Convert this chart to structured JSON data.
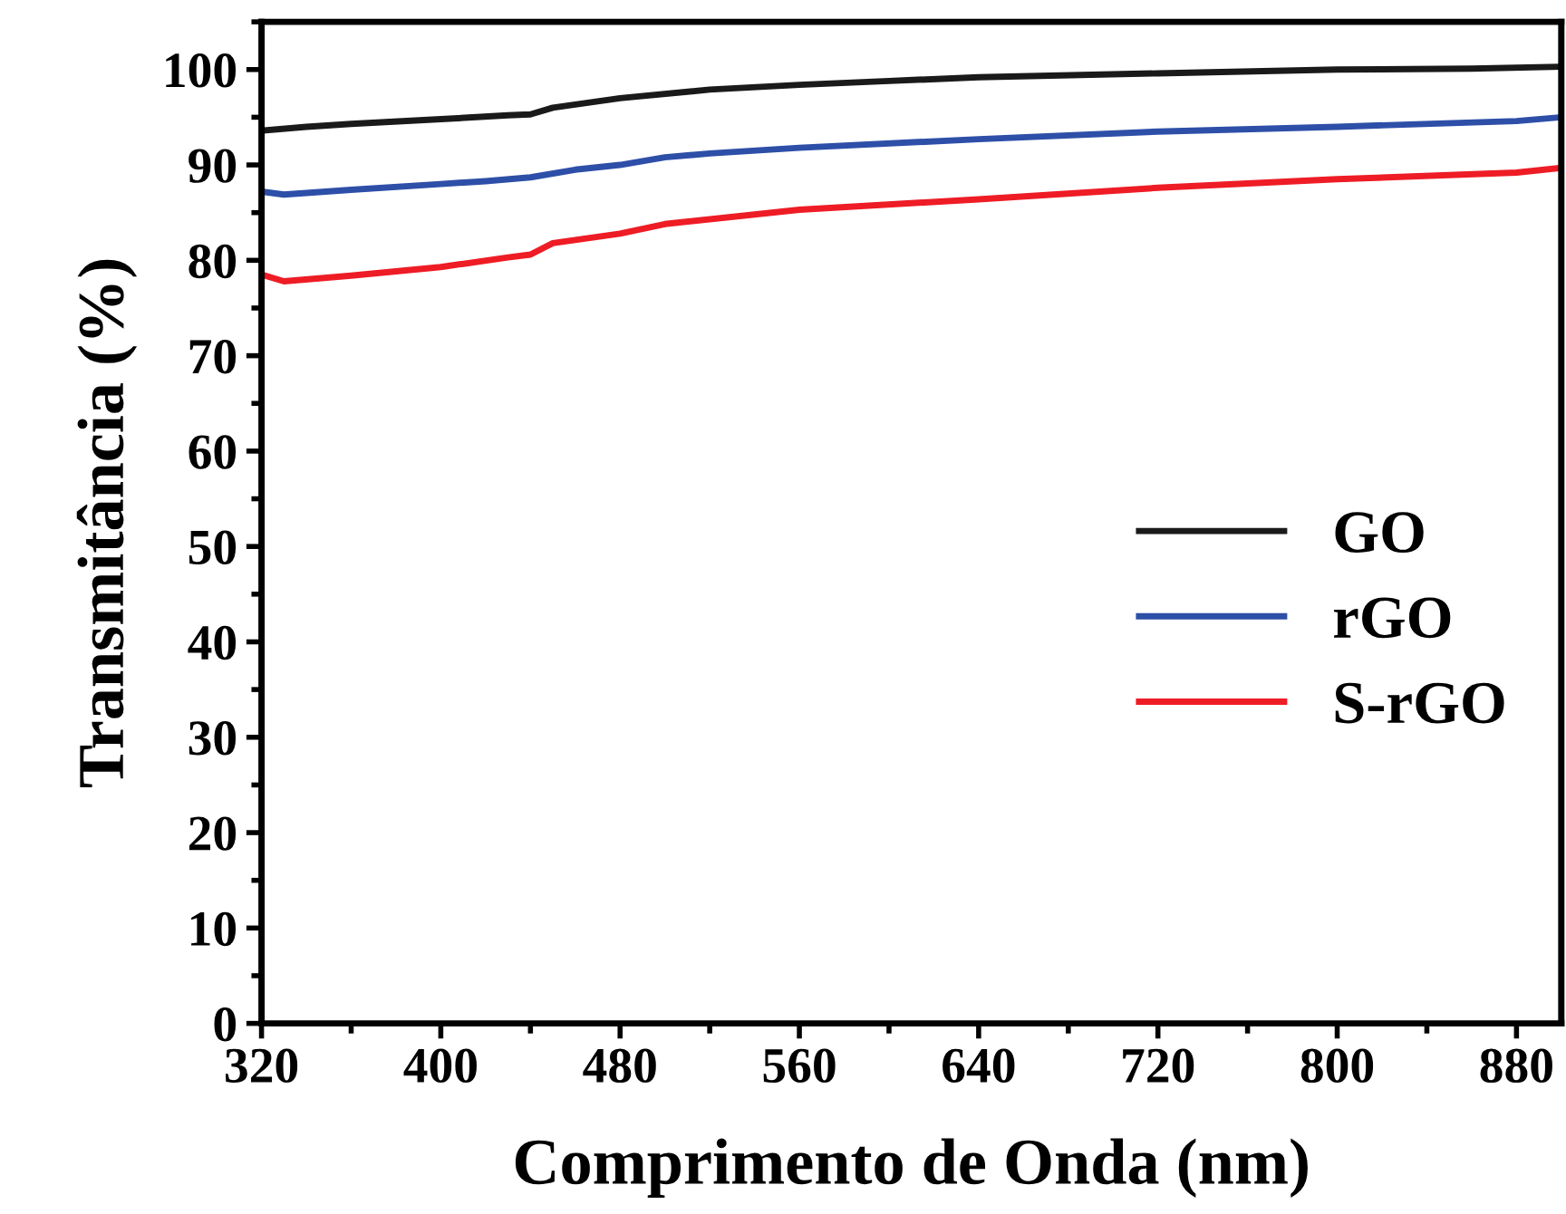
{
  "chart_data": {
    "type": "line",
    "xlabel": "Comprimento de Onda (nm)",
    "ylabel": "Transmitância (%)",
    "xlim": [
      320,
      900
    ],
    "xticks": [
      320,
      400,
      480,
      560,
      640,
      720,
      800,
      880
    ],
    "ylim": [
      0,
      105
    ],
    "yticks": [
      0,
      10,
      20,
      30,
      40,
      50,
      60,
      70,
      80,
      90,
      100
    ],
    "grid": false,
    "legend": "right",
    "marker": "none",
    "line_style": "solid",
    "series": [
      {
        "name": "GO",
        "color": "#1a1a1a",
        "x": [
          320,
          340,
          360,
          400,
          430,
          440,
          450,
          480,
          520,
          560,
          600,
          640,
          720,
          800,
          860,
          900
        ],
        "values": [
          93.6,
          94.0,
          94.3,
          94.8,
          95.2,
          95.3,
          96.0,
          97.0,
          97.9,
          98.4,
          98.8,
          99.2,
          99.6,
          100.0,
          100.1,
          100.3
        ]
      },
      {
        "name": "rGO",
        "color": "#2e4fa8",
        "x": [
          320,
          330,
          360,
          400,
          420,
          440,
          460,
          480,
          500,
          520,
          560,
          640,
          720,
          800,
          880,
          900
        ],
        "values": [
          87.2,
          86.9,
          87.4,
          88.0,
          88.3,
          88.7,
          89.5,
          90.0,
          90.8,
          91.2,
          91.8,
          92.7,
          93.5,
          94.0,
          94.6,
          95.0
        ]
      },
      {
        "name": "S-rGO",
        "color": "#ee1c25",
        "x": [
          320,
          330,
          360,
          400,
          430,
          440,
          450,
          480,
          500,
          560,
          640,
          720,
          800,
          880,
          900
        ],
        "values": [
          78.5,
          77.8,
          78.4,
          79.3,
          80.3,
          80.6,
          81.8,
          82.8,
          83.8,
          85.3,
          86.4,
          87.6,
          88.5,
          89.2,
          89.7
        ]
      }
    ]
  }
}
